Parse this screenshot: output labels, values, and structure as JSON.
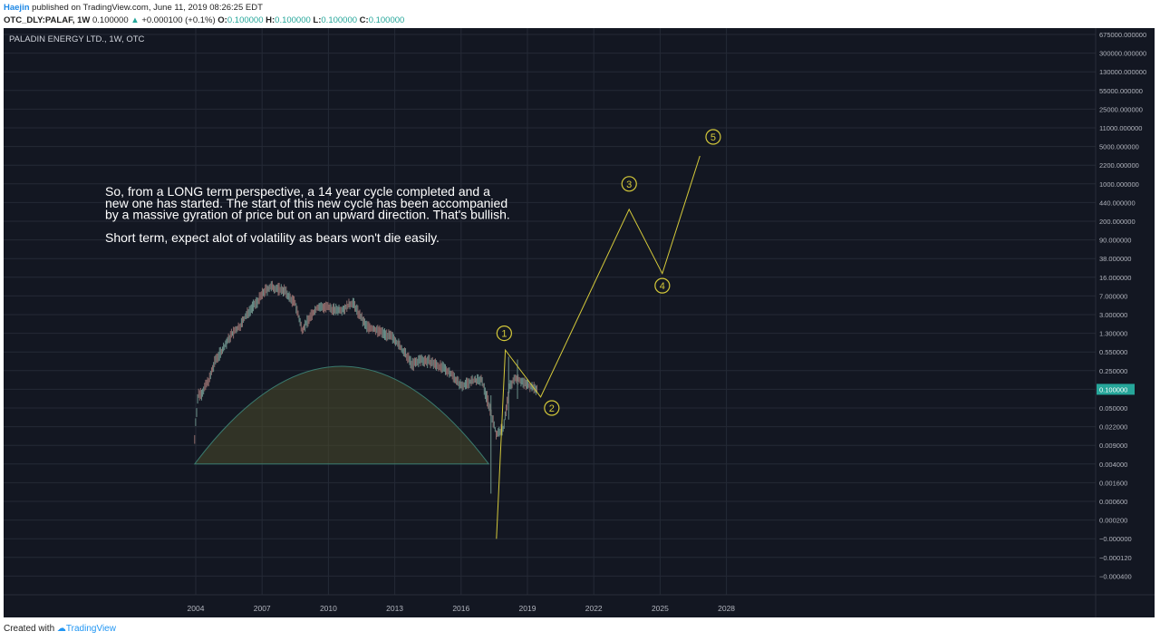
{
  "header": {
    "author": "Haejin",
    "published": "published on TradingView.com, June 11, 2019 08:26:25 EDT",
    "symbol": "OTC_DLY:PALAF, 1W",
    "last": "0.100000",
    "change": "+0.000100 (+0.1%)",
    "o_label": "O:",
    "o": "0.100000",
    "h_label": "H:",
    "h": "0.100000",
    "l_label": "L:",
    "l": "0.100000",
    "c_label": "C:",
    "c": "0.100000"
  },
  "footer": {
    "created_with": "Created with",
    "brand": "TradingView"
  },
  "colors": {
    "background": "#131722",
    "grid": "#252a36",
    "axis_text": "#b2b5be",
    "annotation": "#d4c93a",
    "candle": "#8a8d96",
    "arc_fill": "#4a4a2a",
    "arc_stroke": "#3a7a6e",
    "price_tag": "#26a69a",
    "up": "#26a69a"
  },
  "chart_data": {
    "type": "candlestick",
    "title": "PALADIN ENERGY LTD., 1W, OTC",
    "x_ticks": [
      "2004",
      "2007",
      "2010",
      "2013",
      "2016",
      "2019",
      "2022",
      "2025",
      "2028"
    ],
    "y_ticks": [
      "675000.000000",
      "300000.000000",
      "130000.000000",
      "55000.000000",
      "25000.000000",
      "11000.000000",
      "5000.000000",
      "2200.000000",
      "1000.000000",
      "440.000000",
      "200.000000",
      "90.000000",
      "38.000000",
      "16.000000",
      "7.000000",
      "3.000000",
      "1.300000",
      "0.550000",
      "0.250000",
      "0.100000",
      "0.050000",
      "0.022000",
      "0.009000",
      "0.004000",
      "0.001600",
      "0.000600",
      "0.000200",
      "−0.000000",
      "−0.000120",
      "−0.000400"
    ],
    "last_price_label": "0.100000",
    "price_series": [
      [
        2003.95,
        0.012
      ],
      [
        2004.0,
        0.03
      ],
      [
        2004.1,
        0.08
      ],
      [
        2004.3,
        0.09
      ],
      [
        2004.6,
        0.16
      ],
      [
        2004.9,
        0.4
      ],
      [
        2005.2,
        0.6
      ],
      [
        2005.6,
        1.2
      ],
      [
        2006.0,
        1.8
      ],
      [
        2006.4,
        3.5
      ],
      [
        2006.8,
        5.5
      ],
      [
        2007.1,
        8.5
      ],
      [
        2007.4,
        10.5
      ],
      [
        2007.7,
        9.5
      ],
      [
        2008.0,
        9.0
      ],
      [
        2008.3,
        6.0
      ],
      [
        2008.5,
        5.0
      ],
      [
        2008.8,
        1.5
      ],
      [
        2009.1,
        2.4
      ],
      [
        2009.5,
        4.2
      ],
      [
        2009.9,
        4.2
      ],
      [
        2010.3,
        3.7
      ],
      [
        2010.7,
        3.9
      ],
      [
        2011.1,
        5.2
      ],
      [
        2011.4,
        3.0
      ],
      [
        2011.7,
        1.8
      ],
      [
        2012.0,
        1.6
      ],
      [
        2012.5,
        1.3
      ],
      [
        2013.0,
        1.0
      ],
      [
        2013.4,
        0.55
      ],
      [
        2013.8,
        0.32
      ],
      [
        2014.2,
        0.4
      ],
      [
        2014.6,
        0.36
      ],
      [
        2015.0,
        0.3
      ],
      [
        2015.5,
        0.23
      ],
      [
        2016.0,
        0.12
      ],
      [
        2016.5,
        0.15
      ],
      [
        2016.9,
        0.16
      ],
      [
        2017.3,
        0.05
      ],
      [
        2017.6,
        0.015
      ],
      [
        2017.9,
        0.02
      ],
      [
        2018.2,
        0.12
      ],
      [
        2018.5,
        0.18
      ],
      [
        2018.8,
        0.14
      ],
      [
        2019.1,
        0.12
      ],
      [
        2019.45,
        0.1
      ]
    ],
    "spikes": [
      {
        "x": 2017.35,
        "low": 0.0009,
        "high": 0.08
      },
      {
        "x": 2018.15,
        "low": 0.03,
        "high": 0.45
      },
      {
        "x": 2018.55,
        "low": 0.07,
        "high": 0.4
      }
    ],
    "arc": {
      "x_start": 2003.95,
      "x_end": 2017.25,
      "base": 0.004,
      "peak": 0.3
    },
    "wave_count": {
      "path": [
        [
          2017.6,
          -3e-07
        ],
        [
          2018.0,
          0.6
        ],
        [
          2019.6,
          0.075
        ],
        [
          2023.6,
          330
        ],
        [
          2025.1,
          19
        ],
        [
          2026.8,
          3300
        ]
      ],
      "labels": [
        {
          "text": "1",
          "x": 2017.95,
          "y": 1.3
        },
        {
          "text": "2",
          "x": 2020.1,
          "y": 0.05
        },
        {
          "text": "3",
          "x": 2023.6,
          "y": 1000
        },
        {
          "text": "4",
          "x": 2025.1,
          "y": 11
        },
        {
          "text": "5",
          "x": 2027.4,
          "y": 7500
        }
      ]
    },
    "annotation_lines": [
      "So, from a LONG term perspective, a 14 year cycle completed and a",
      "new one has started. The start of this new cycle has been accompanied",
      "by a massive gyration of price but on an upward direction. That's bullish.",
      "",
      "Short term, expect alot of volatility as bears won't die easily."
    ],
    "grid": true,
    "y_scale": "log"
  }
}
